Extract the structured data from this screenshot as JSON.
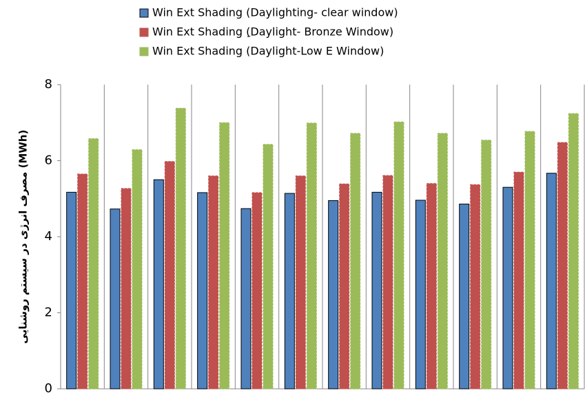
{
  "chart_data": {
    "type": "bar",
    "y_label": "مصرف انرژی در سیستم روشنایی (MWh)",
    "categories": [
      null,
      null,
      null,
      null,
      null,
      null,
      null,
      null,
      null,
      null,
      null,
      null
    ],
    "series": [
      {
        "name": "Win Ext Shading (Daylighting- clear window)",
        "color": "#4f81bd",
        "values": [
          5.17,
          4.73,
          5.5,
          5.16,
          4.74,
          5.14,
          4.95,
          5.17,
          4.96,
          4.86,
          5.3,
          5.67
        ]
      },
      {
        "name": "Win Ext Shading (ِDaylight- Bronze Window)",
        "color": "#c0504d",
        "values": [
          5.65,
          5.27,
          5.98,
          5.6,
          5.16,
          5.6,
          5.39,
          5.61,
          5.4,
          5.37,
          5.7,
          6.48
        ]
      },
      {
        "name": "Win Ext Shading (Daylight-Low E Window)",
        "color": "#9bbb59",
        "values": [
          6.58,
          6.29,
          7.38,
          7.0,
          6.43,
          6.99,
          6.72,
          7.02,
          6.72,
          6.54,
          6.77,
          7.24
        ]
      }
    ],
    "ylim": [
      0,
      8
    ],
    "yticks": [
      0,
      2,
      4,
      6,
      8
    ],
    "x_grid": true,
    "legend": "top"
  }
}
